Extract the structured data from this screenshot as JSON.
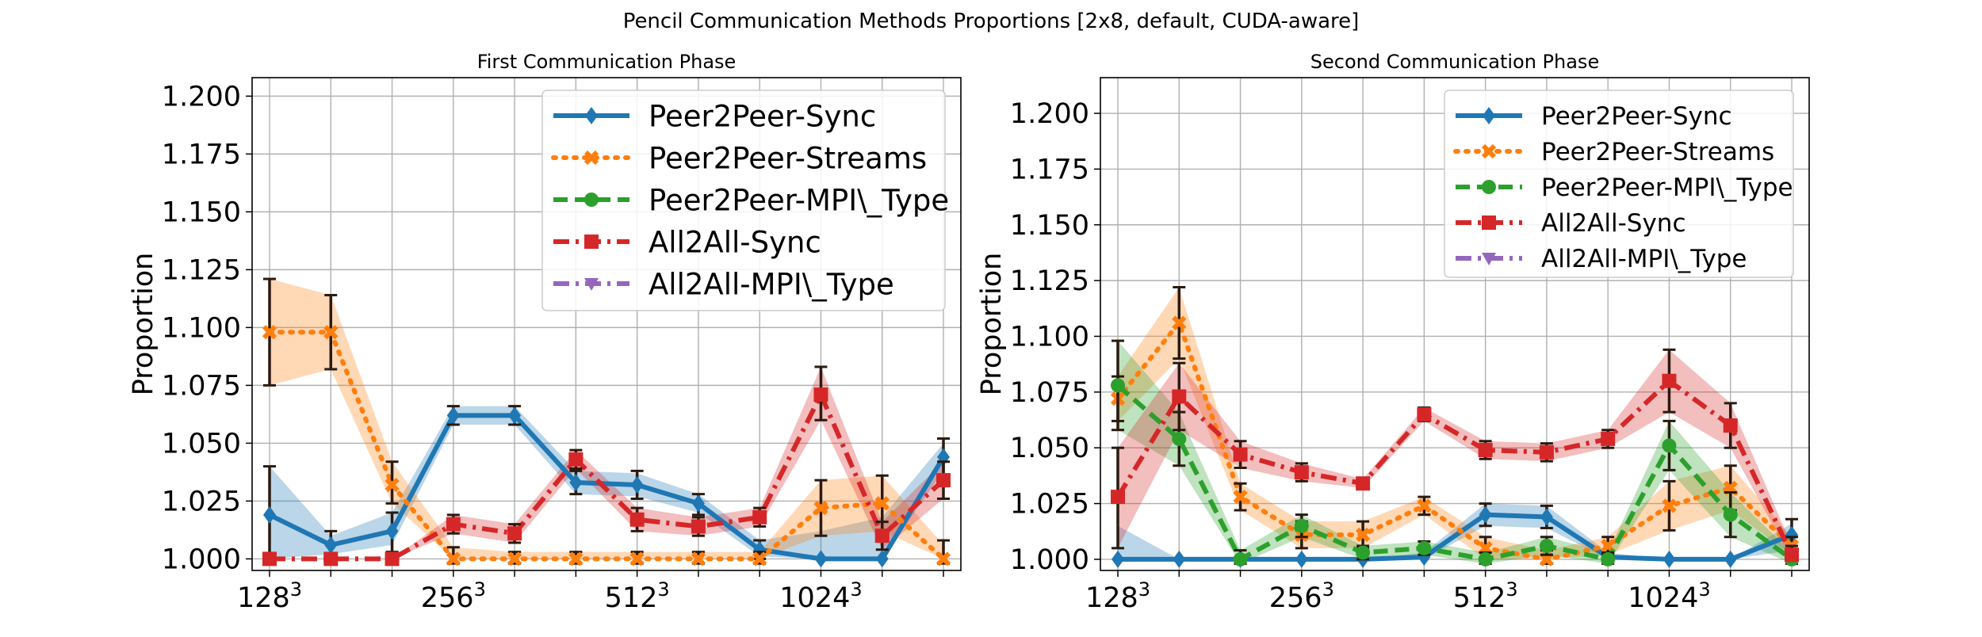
{
  "figure": {
    "suptitle": "Pencil Communication Methods Proportions [2x8, default, CUDA-aware]",
    "legend_entries": [
      {
        "name": "Peer2Peer-Sync",
        "color": "#1f77b4",
        "marker": "diamond",
        "dash": "solid"
      },
      {
        "name": "Peer2Peer-Streams",
        "color": "#ff7f0e",
        "marker": "x",
        "dash": "dotted"
      },
      {
        "name": "Peer2Peer-MPI\\_Type",
        "color": "#2ca02c",
        "marker": "circle",
        "dash": "dashed"
      },
      {
        "name": "All2All-Sync",
        "color": "#d62728",
        "marker": "square",
        "dash": "dashdot"
      },
      {
        "name": "All2All-MPI\\_Type",
        "color": "#9467bd",
        "marker": "triangle-down",
        "dash": "dashdot"
      }
    ]
  },
  "chart_data": [
    {
      "type": "line",
      "title": "First Communication Phase",
      "xlabel": "",
      "ylabel": "Proportion",
      "ylim": [
        0.995,
        1.208
      ],
      "x": [
        "128³",
        "",
        "",
        "256³",
        "",
        "",
        "512³",
        "",
        "",
        "1024³",
        "",
        ""
      ],
      "x_tick_labels": [
        {
          "index": 0,
          "base": "128",
          "exp": "3"
        },
        {
          "index": 3,
          "base": "256",
          "exp": "3"
        },
        {
          "index": 6,
          "base": "512",
          "exp": "3"
        },
        {
          "index": 9,
          "base": "1024",
          "exp": "3"
        }
      ],
      "y_ticks": [
        "1.000",
        "1.025",
        "1.050",
        "1.075",
        "1.100",
        "1.125",
        "1.150",
        "1.175",
        "1.200"
      ],
      "grid": true,
      "legend_position": "upper-right",
      "series": [
        {
          "name": "Peer2Peer-Sync",
          "values": [
            1.019,
            1.006,
            1.012,
            1.062,
            1.062,
            1.033,
            1.032,
            1.024,
            1.004,
            1.0,
            1.0,
            1.044
          ],
          "band_lo": [
            1.0,
            1.002,
            1.006,
            1.058,
            1.058,
            1.028,
            1.027,
            1.02,
            1.001,
            1.0,
            1.0,
            1.038
          ],
          "band_hi": [
            1.04,
            1.01,
            1.02,
            1.066,
            1.066,
            1.038,
            1.037,
            1.028,
            1.008,
            1.012,
            1.018,
            1.05
          ],
          "err_lo": [
            1.0,
            1.001,
            1.003,
            1.058,
            1.058,
            1.028,
            1.026,
            1.019,
            1.0,
            null,
            null,
            1.036
          ],
          "err_hi": [
            1.04,
            1.012,
            1.02,
            1.066,
            1.066,
            1.038,
            1.038,
            1.028,
            1.008,
            null,
            null,
            1.052
          ]
        },
        {
          "name": "Peer2Peer-Streams",
          "values": [
            1.098,
            1.098,
            1.032,
            1.0,
            1.0,
            1.0,
            1.0,
            1.0,
            1.0,
            1.022,
            1.024,
            1.0
          ],
          "band_lo": [
            1.075,
            1.082,
            1.024,
            1.0,
            1.0,
            1.0,
            1.0,
            1.0,
            1.0,
            1.01,
            1.012,
            1.0
          ],
          "band_hi": [
            1.121,
            1.114,
            1.042,
            1.005,
            1.003,
            1.003,
            1.003,
            1.003,
            1.003,
            1.034,
            1.036,
            1.006
          ],
          "err_lo": [
            1.075,
            1.082,
            1.024,
            0.998,
            0.998,
            0.998,
            0.998,
            0.998,
            0.998,
            1.01,
            1.012,
            0.998
          ],
          "err_hi": [
            1.121,
            1.114,
            1.042,
            1.005,
            1.003,
            1.003,
            1.003,
            1.003,
            1.003,
            1.034,
            1.036,
            1.008
          ]
        },
        {
          "name": "All2All-Sync",
          "values": [
            1.0,
            1.0,
            1.0,
            1.015,
            1.011,
            1.043,
            1.017,
            1.014,
            1.018,
            1.071,
            1.01,
            1.034
          ],
          "band_lo": [
            1.0,
            1.0,
            1.0,
            1.011,
            1.007,
            1.039,
            1.012,
            1.01,
            1.014,
            1.06,
            1.004,
            1.026
          ],
          "band_hi": [
            1.0,
            1.0,
            1.0,
            1.019,
            1.015,
            1.047,
            1.022,
            1.018,
            1.022,
            1.083,
            1.016,
            1.042
          ],
          "err_lo": [
            0.998,
            0.998,
            0.998,
            1.011,
            1.007,
            1.039,
            1.012,
            1.01,
            1.014,
            1.06,
            1.004,
            1.026
          ],
          "err_hi": [
            1.002,
            1.002,
            1.002,
            1.019,
            1.015,
            1.047,
            1.022,
            1.018,
            1.022,
            1.083,
            1.016,
            1.042
          ]
        }
      ]
    },
    {
      "type": "line",
      "title": "Second Communication Phase",
      "xlabel": "",
      "ylabel": "Proportion",
      "ylim": [
        0.995,
        1.216
      ],
      "x": [
        "128³",
        "",
        "",
        "256³",
        "",
        "",
        "512³",
        "",
        "",
        "1024³",
        "",
        ""
      ],
      "x_tick_labels": [
        {
          "index": 0,
          "base": "128",
          "exp": "3"
        },
        {
          "index": 3,
          "base": "256",
          "exp": "3"
        },
        {
          "index": 6,
          "base": "512",
          "exp": "3"
        },
        {
          "index": 9,
          "base": "1024",
          "exp": "3"
        }
      ],
      "y_ticks": [
        "1.000",
        "1.025",
        "1.050",
        "1.075",
        "1.100",
        "1.125",
        "1.150",
        "1.175",
        "1.200"
      ],
      "grid": true,
      "legend_position": "upper-right",
      "series": [
        {
          "name": "Peer2Peer-Sync",
          "values": [
            1.0,
            1.0,
            1.0,
            1.0,
            1.0,
            1.001,
            1.02,
            1.019,
            1.001,
            1.0,
            1.0,
            1.011
          ],
          "band_lo": [
            1.0,
            1.0,
            1.0,
            1.0,
            1.0,
            1.0,
            1.015,
            1.014,
            1.0,
            1.0,
            1.0,
            1.004
          ],
          "band_hi": [
            1.015,
            1.0,
            1.0,
            1.0,
            1.0,
            1.003,
            1.025,
            1.024,
            1.003,
            1.0,
            1.0,
            1.016
          ],
          "err_lo": [
            null,
            null,
            null,
            null,
            null,
            null,
            1.015,
            1.014,
            null,
            null,
            null,
            1.004
          ],
          "err_hi": [
            null,
            null,
            null,
            null,
            null,
            null,
            1.025,
            1.024,
            null,
            null,
            null,
            1.018
          ]
        },
        {
          "name": "Peer2Peer-Streams",
          "values": [
            1.072,
            1.106,
            1.028,
            1.011,
            1.011,
            1.024,
            1.005,
            1.0,
            1.006,
            1.024,
            1.032,
            1.006
          ],
          "band_lo": [
            1.062,
            1.09,
            1.022,
            1.005,
            1.005,
            1.02,
            1.0,
            1.0,
            1.002,
            1.013,
            1.022,
            1.002
          ],
          "band_hi": [
            1.082,
            1.122,
            1.034,
            1.017,
            1.017,
            1.028,
            1.01,
            1.004,
            1.01,
            1.035,
            1.042,
            1.01
          ],
          "err_lo": [
            1.062,
            1.09,
            1.022,
            1.005,
            1.005,
            1.02,
            1.0,
            0.998,
            1.002,
            1.013,
            1.022,
            1.002
          ],
          "err_hi": [
            1.082,
            1.122,
            1.034,
            1.017,
            1.017,
            1.028,
            1.01,
            1.004,
            1.01,
            1.035,
            1.042,
            1.01
          ]
        },
        {
          "name": "Peer2Peer-MPI\\_Type",
          "values": [
            1.078,
            1.054,
            1.0,
            1.015,
            1.003,
            1.005,
            1.0,
            1.006,
            1.0,
            1.051,
            1.02,
            1.0
          ],
          "band_lo": [
            1.058,
            1.042,
            0.998,
            1.01,
            1.0,
            1.002,
            0.998,
            1.002,
            0.998,
            1.04,
            1.01,
            0.998
          ],
          "band_hi": [
            1.098,
            1.066,
            1.004,
            1.02,
            1.006,
            1.008,
            1.003,
            1.01,
            1.003,
            1.062,
            1.03,
            1.003
          ],
          "err_lo": [
            1.058,
            1.042,
            0.998,
            1.01,
            1.0,
            1.002,
            0.998,
            1.002,
            0.998,
            1.04,
            1.01,
            0.998
          ],
          "err_hi": [
            1.098,
            1.066,
            1.004,
            1.02,
            1.006,
            1.008,
            1.003,
            1.01,
            1.003,
            1.062,
            1.03,
            1.003
          ]
        },
        {
          "name": "All2All-Sync",
          "values": [
            1.028,
            1.073,
            1.047,
            1.039,
            1.034,
            1.065,
            1.049,
            1.048,
            1.054,
            1.08,
            1.06,
            1.002
          ],
          "band_lo": [
            1.005,
            1.058,
            1.041,
            1.035,
            1.032,
            1.062,
            1.045,
            1.044,
            1.05,
            1.066,
            1.05,
            1.0
          ],
          "band_hi": [
            1.05,
            1.088,
            1.053,
            1.043,
            1.036,
            1.068,
            1.053,
            1.052,
            1.058,
            1.094,
            1.07,
            1.006
          ],
          "err_lo": [
            1.005,
            1.058,
            1.041,
            1.035,
            1.032,
            1.062,
            1.045,
            1.044,
            1.05,
            1.066,
            1.05,
            1.0
          ],
          "err_hi": [
            1.05,
            1.088,
            1.053,
            1.043,
            1.036,
            1.068,
            1.053,
            1.052,
            1.058,
            1.094,
            1.07,
            1.006
          ]
        }
      ]
    }
  ]
}
